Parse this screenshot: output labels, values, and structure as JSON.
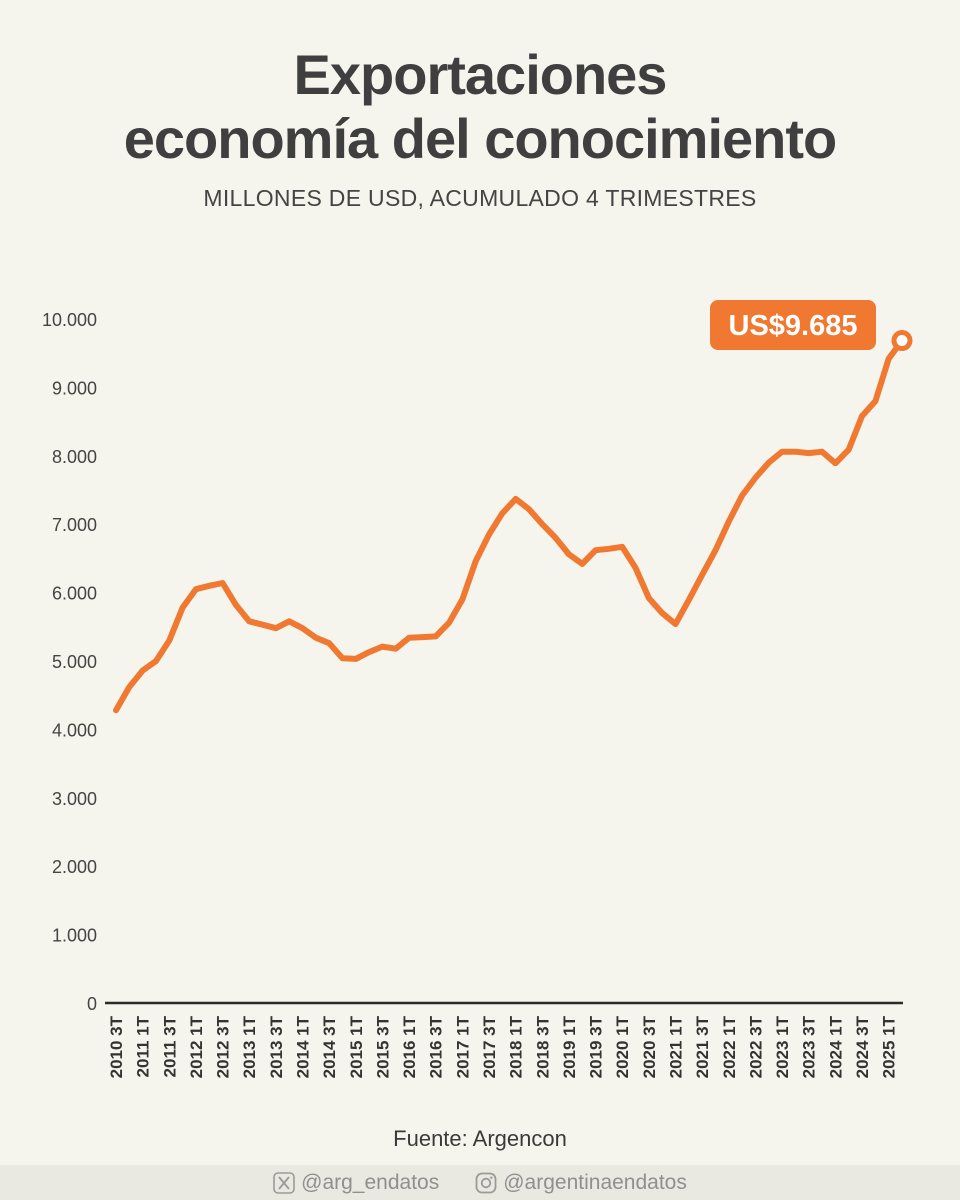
{
  "header": {
    "title_line1": "Exportaciones",
    "title_line2": "economía del conocimiento",
    "subtitle": "MILLONES DE USD, ACUMULADO 4 TRIMESTRES"
  },
  "chart_data": {
    "type": "line",
    "title": "Exportaciones economía del conocimiento",
    "subtitle": "MILLONES DE USD, ACUMULADO 4 TRIMESTRES",
    "xlabel": "",
    "ylabel": "",
    "ylim": [
      0,
      10000
    ],
    "yticks": [
      0,
      1000,
      2000,
      3000,
      4000,
      5000,
      6000,
      7000,
      8000,
      9000,
      10000
    ],
    "ytick_labels": [
      "0",
      "1.000",
      "2.000",
      "3.000",
      "4.000",
      "5.000",
      "6.000",
      "7.000",
      "8.000",
      "9.000",
      "10.000"
    ],
    "xtick_labels": [
      "2010 3T",
      "2011 1T",
      "2011 3T",
      "2012 1T",
      "2012 3T",
      "2013 1T",
      "2013 3T",
      "2014 1T",
      "2014 3T",
      "2015 1T",
      "2015 3T",
      "2016 1T",
      "2016 3T",
      "2017 1T",
      "2017 3T",
      "2018 1T",
      "2018 3T",
      "2019 1T",
      "2019 3T",
      "2020 1T",
      "2020 3T",
      "2021 1T",
      "2021 3T",
      "2022 1T",
      "2022 3T",
      "2023 1T",
      "2023 3T",
      "2024 1T",
      "2024 3T",
      "2025 1T"
    ],
    "x": [
      "2010 3T",
      "2010 4T",
      "2011 1T",
      "2011 2T",
      "2011 3T",
      "2011 4T",
      "2012 1T",
      "2012 2T",
      "2012 3T",
      "2012 4T",
      "2013 1T",
      "2013 2T",
      "2013 3T",
      "2013 4T",
      "2014 1T",
      "2014 2T",
      "2014 3T",
      "2014 4T",
      "2015 1T",
      "2015 2T",
      "2015 3T",
      "2015 4T",
      "2016 1T",
      "2016 2T",
      "2016 3T",
      "2016 4T",
      "2017 1T",
      "2017 2T",
      "2017 3T",
      "2017 4T",
      "2018 1T",
      "2018 2T",
      "2018 3T",
      "2018 4T",
      "2019 1T",
      "2019 2T",
      "2019 3T",
      "2019 4T",
      "2020 1T",
      "2020 2T",
      "2020 3T",
      "2020 4T",
      "2021 1T",
      "2021 2T",
      "2021 3T",
      "2021 4T",
      "2022 1T",
      "2022 2T",
      "2022 3T",
      "2022 4T",
      "2023 1T",
      "2023 2T",
      "2023 3T",
      "2023 4T",
      "2024 1T",
      "2024 2T",
      "2024 3T",
      "2024 4T",
      "2025 1T",
      "2025 2T"
    ],
    "series": [
      {
        "values": [
          4280,
          4620,
          4860,
          5000,
          5300,
          5780,
          6050,
          6100,
          6140,
          5820,
          5580,
          5530,
          5480,
          5580,
          5480,
          5340,
          5260,
          5040,
          5030,
          5130,
          5210,
          5180,
          5340,
          5350,
          5360,
          5560,
          5900,
          6460,
          6850,
          7160,
          7370,
          7220,
          7000,
          6800,
          6560,
          6420,
          6620,
          6640,
          6670,
          6360,
          5920,
          5700,
          5540,
          5890,
          6260,
          6620,
          7040,
          7420,
          7680,
          7900,
          8060,
          8060,
          8040,
          8060,
          7890,
          8090,
          8580,
          8800,
          9420,
          9685
        ]
      }
    ],
    "color": "#f07830",
    "grid": false,
    "annotation": "US$9.685"
  },
  "source": "Fuente: Argencon",
  "footer": {
    "x_handle": "@arg_endatos",
    "instagram_handle": "@argentinaendatos",
    "x_icon": "x-logo-icon",
    "instagram_icon": "instagram-icon"
  }
}
